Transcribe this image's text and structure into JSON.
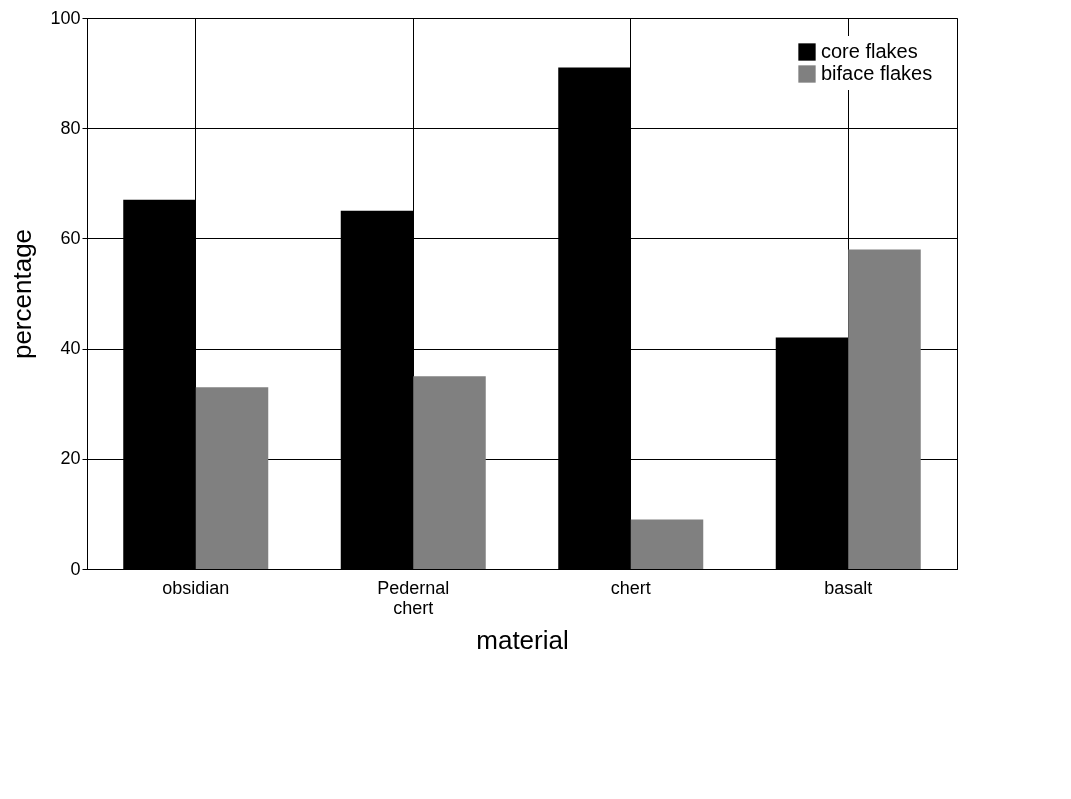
{
  "chart_data": {
    "type": "bar",
    "xlabel": "material",
    "ylabel": "percentage",
    "categories": [
      "obsidian",
      "Pedernal chert",
      "chert",
      "basalt"
    ],
    "series": [
      {
        "name": "core flakes",
        "color": "#000000",
        "values": [
          67,
          65,
          91,
          42
        ]
      },
      {
        "name": "biface flakes",
        "color": "#808080",
        "values": [
          33,
          35,
          9,
          58
        ]
      }
    ],
    "ylim": [
      0,
      100
    ],
    "yticks": [
      0,
      20,
      40,
      60,
      80,
      100
    ],
    "grid": true,
    "legend": "top right"
  }
}
